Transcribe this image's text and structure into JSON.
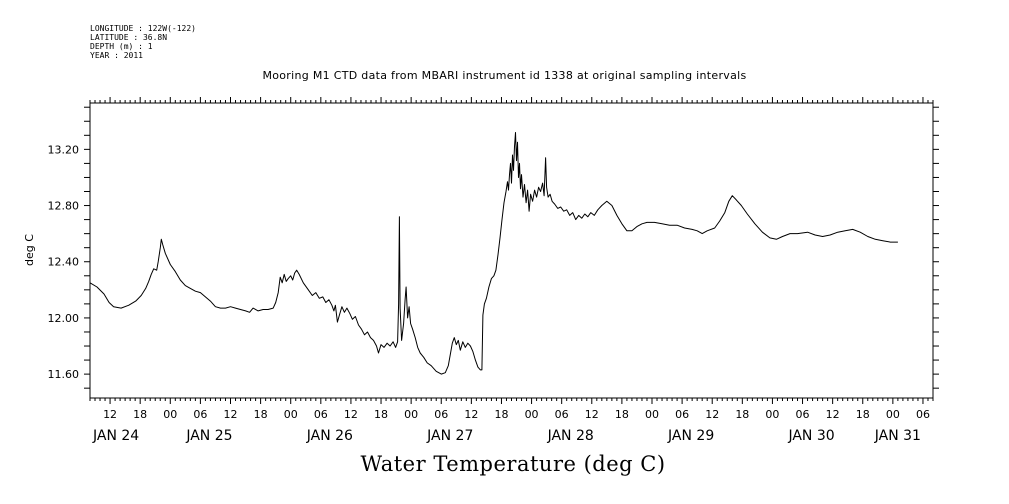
{
  "meta": {
    "longitude": "LONGITUDE : 122W(-122)",
    "latitude": "LATITUDE : 36.8N",
    "depth": "DEPTH (m) : 1",
    "year": "YEAR : 2011"
  },
  "chart_data": {
    "type": "line",
    "title": "Mooring M1 CTD data from MBARI instrument id 1338 at original sampling intervals",
    "bottom_title": "Water Temperature (deg C)",
    "ylabel": "deg C",
    "ylim": [
      11.43,
      13.53
    ],
    "xlim": [
      -16,
      152
    ],
    "x_unit": "hours since 2011-01-24 00:00",
    "y_ticks": [
      11.6,
      12.0,
      12.4,
      12.8,
      13.2
    ],
    "y_tick_labels": [
      "11.60",
      "12.00",
      "12.40",
      "12.80",
      "13.20"
    ],
    "hour_tick_labels": [
      {
        "x": -12,
        "label": "12"
      },
      {
        "x": -6,
        "label": "18"
      },
      {
        "x": 0,
        "label": "00"
      },
      {
        "x": 6,
        "label": "06"
      },
      {
        "x": 12,
        "label": "12"
      },
      {
        "x": 18,
        "label": "18"
      },
      {
        "x": 24,
        "label": "00"
      },
      {
        "x": 30,
        "label": "06"
      },
      {
        "x": 36,
        "label": "12"
      },
      {
        "x": 42,
        "label": "18"
      },
      {
        "x": 48,
        "label": "00"
      },
      {
        "x": 54,
        "label": "06"
      },
      {
        "x": 60,
        "label": "12"
      },
      {
        "x": 66,
        "label": "18"
      },
      {
        "x": 72,
        "label": "00"
      },
      {
        "x": 78,
        "label": "06"
      },
      {
        "x": 84,
        "label": "12"
      },
      {
        "x": 90,
        "label": "18"
      },
      {
        "x": 96,
        "label": "00"
      },
      {
        "x": 102,
        "label": "06"
      },
      {
        "x": 108,
        "label": "12"
      },
      {
        "x": 114,
        "label": "18"
      },
      {
        "x": 120,
        "label": "00"
      },
      {
        "x": 126,
        "label": "06"
      },
      {
        "x": 132,
        "label": "12"
      },
      {
        "x": 138,
        "label": "18"
      },
      {
        "x": 144,
        "label": "00"
      },
      {
        "x": 150,
        "label": "06"
      }
    ],
    "day_labels": [
      {
        "x": -10.8,
        "label": "JAN 24"
      },
      {
        "x": 7.8,
        "label": "JAN 25"
      },
      {
        "x": 31.8,
        "label": "JAN 26"
      },
      {
        "x": 55.8,
        "label": "JAN 27"
      },
      {
        "x": 79.8,
        "label": "JAN 28"
      },
      {
        "x": 103.8,
        "label": "JAN 29"
      },
      {
        "x": 127.8,
        "label": "JAN 30"
      },
      {
        "x": 145,
        "label": "JAN 31"
      }
    ],
    "series": [
      {
        "color": "#000000",
        "points": [
          [
            -16.0,
            12.25
          ],
          [
            -14.6,
            12.22
          ],
          [
            -13.2,
            12.17
          ],
          [
            -12.2,
            12.11
          ],
          [
            -11.3,
            12.08
          ],
          [
            -9.8,
            12.07
          ],
          [
            -8.3,
            12.09
          ],
          [
            -6.9,
            12.12
          ],
          [
            -5.8,
            12.16
          ],
          [
            -4.9,
            12.21
          ],
          [
            -4.3,
            12.26
          ],
          [
            -3.8,
            12.31
          ],
          [
            -3.3,
            12.35
          ],
          [
            -2.7,
            12.34
          ],
          [
            -2.4,
            12.4
          ],
          [
            -2.0,
            12.5
          ],
          [
            -1.8,
            12.56
          ],
          [
            -1.5,
            12.52
          ],
          [
            -1.0,
            12.46
          ],
          [
            0.0,
            12.38
          ],
          [
            1.0,
            12.33
          ],
          [
            2.0,
            12.27
          ],
          [
            3.0,
            12.23
          ],
          [
            4.0,
            12.21
          ],
          [
            5.0,
            12.19
          ],
          [
            6.0,
            12.18
          ],
          [
            7.0,
            12.15
          ],
          [
            8.0,
            12.12
          ],
          [
            9.0,
            12.08
          ],
          [
            10.0,
            12.07
          ],
          [
            11.0,
            12.07
          ],
          [
            12.0,
            12.08
          ],
          [
            13.0,
            12.07
          ],
          [
            14.0,
            12.06
          ],
          [
            15.0,
            12.05
          ],
          [
            15.8,
            12.04
          ],
          [
            16.5,
            12.07
          ],
          [
            17.5,
            12.05
          ],
          [
            18.5,
            12.06
          ],
          [
            19.5,
            12.06
          ],
          [
            20.5,
            12.07
          ],
          [
            21.0,
            12.11
          ],
          [
            21.5,
            12.18
          ],
          [
            21.9,
            12.29
          ],
          [
            22.3,
            12.25
          ],
          [
            22.7,
            12.31
          ],
          [
            23.1,
            12.26
          ],
          [
            23.5,
            12.28
          ],
          [
            24.0,
            12.3
          ],
          [
            24.4,
            12.27
          ],
          [
            24.8,
            12.32
          ],
          [
            25.2,
            12.34
          ],
          [
            25.7,
            12.31
          ],
          [
            26.5,
            12.25
          ],
          [
            27.5,
            12.2
          ],
          [
            28.3,
            12.16
          ],
          [
            29.0,
            12.18
          ],
          [
            29.7,
            12.14
          ],
          [
            30.4,
            12.15
          ],
          [
            31.0,
            12.11
          ],
          [
            31.6,
            12.13
          ],
          [
            32.2,
            12.09
          ],
          [
            32.6,
            12.05
          ],
          [
            32.9,
            12.09
          ],
          [
            33.3,
            11.97
          ],
          [
            33.7,
            12.02
          ],
          [
            34.2,
            12.08
          ],
          [
            34.7,
            12.04
          ],
          [
            35.2,
            12.07
          ],
          [
            35.8,
            12.03
          ],
          [
            36.3,
            11.99
          ],
          [
            36.9,
            12.01
          ],
          [
            37.5,
            11.95
          ],
          [
            38.1,
            11.92
          ],
          [
            38.7,
            11.88
          ],
          [
            39.3,
            11.9
          ],
          [
            39.9,
            11.86
          ],
          [
            40.5,
            11.84
          ],
          [
            41.1,
            11.8
          ],
          [
            41.5,
            11.75
          ],
          [
            42.0,
            11.81
          ],
          [
            42.6,
            11.79
          ],
          [
            43.2,
            11.82
          ],
          [
            43.8,
            11.8
          ],
          [
            44.4,
            11.83
          ],
          [
            44.9,
            11.79
          ],
          [
            45.3,
            11.83
          ],
          [
            45.5,
            12.1
          ],
          [
            45.65,
            12.72
          ],
          [
            45.8,
            12.07
          ],
          [
            46.1,
            11.84
          ],
          [
            46.5,
            11.96
          ],
          [
            46.8,
            12.13
          ],
          [
            47.0,
            12.22
          ],
          [
            47.3,
            12.0
          ],
          [
            47.6,
            12.08
          ],
          [
            47.9,
            11.96
          ],
          [
            48.3,
            11.92
          ],
          [
            48.8,
            11.86
          ],
          [
            49.3,
            11.79
          ],
          [
            49.8,
            11.75
          ],
          [
            50.5,
            11.72
          ],
          [
            51.2,
            11.68
          ],
          [
            52.0,
            11.66
          ],
          [
            53.0,
            11.62
          ],
          [
            54.0,
            11.6
          ],
          [
            54.8,
            11.61
          ],
          [
            55.4,
            11.66
          ],
          [
            55.8,
            11.74
          ],
          [
            56.2,
            11.82
          ],
          [
            56.6,
            11.86
          ],
          [
            57.0,
            11.81
          ],
          [
            57.4,
            11.84
          ],
          [
            57.8,
            11.77
          ],
          [
            58.3,
            11.83
          ],
          [
            58.8,
            11.79
          ],
          [
            59.3,
            11.82
          ],
          [
            59.8,
            11.8
          ],
          [
            60.3,
            11.76
          ],
          [
            60.8,
            11.7
          ],
          [
            61.3,
            11.65
          ],
          [
            61.8,
            11.63
          ],
          [
            62.1,
            11.63
          ],
          [
            62.3,
            12.02
          ],
          [
            62.6,
            12.1
          ],
          [
            63.0,
            12.14
          ],
          [
            63.5,
            12.22
          ],
          [
            64.0,
            12.28
          ],
          [
            64.5,
            12.3
          ],
          [
            64.9,
            12.34
          ],
          [
            65.3,
            12.45
          ],
          [
            65.7,
            12.57
          ],
          [
            66.1,
            12.7
          ],
          [
            66.5,
            12.82
          ],
          [
            66.9,
            12.9
          ],
          [
            67.2,
            12.97
          ],
          [
            67.4,
            12.91
          ],
          [
            67.6,
            13.02
          ],
          [
            67.8,
            13.1
          ],
          [
            68.0,
            12.96
          ],
          [
            68.2,
            13.16
          ],
          [
            68.4,
            13.05
          ],
          [
            68.6,
            13.22
          ],
          [
            68.8,
            13.32
          ],
          [
            69.0,
            13.12
          ],
          [
            69.2,
            13.25
          ],
          [
            69.4,
            13.0
          ],
          [
            69.6,
            13.1
          ],
          [
            69.8,
            12.92
          ],
          [
            70.0,
            13.02
          ],
          [
            70.3,
            12.86
          ],
          [
            70.6,
            12.95
          ],
          [
            70.9,
            12.82
          ],
          [
            71.2,
            12.91
          ],
          [
            71.5,
            12.76
          ],
          [
            71.8,
            12.88
          ],
          [
            72.2,
            12.83
          ],
          [
            72.6,
            12.91
          ],
          [
            73.0,
            12.86
          ],
          [
            73.4,
            12.93
          ],
          [
            73.8,
            12.9
          ],
          [
            74.2,
            12.96
          ],
          [
            74.5,
            12.87
          ],
          [
            74.8,
            13.14
          ],
          [
            75.0,
            12.93
          ],
          [
            75.3,
            12.86
          ],
          [
            75.7,
            12.88
          ],
          [
            76.1,
            12.83
          ],
          [
            76.6,
            12.81
          ],
          [
            77.2,
            12.78
          ],
          [
            77.8,
            12.79
          ],
          [
            78.4,
            12.76
          ],
          [
            79.0,
            12.77
          ],
          [
            79.6,
            12.73
          ],
          [
            80.2,
            12.75
          ],
          [
            80.8,
            12.7
          ],
          [
            81.4,
            12.73
          ],
          [
            82.0,
            12.71
          ],
          [
            82.6,
            12.74
          ],
          [
            83.2,
            12.72
          ],
          [
            83.8,
            12.75
          ],
          [
            84.5,
            12.73
          ],
          [
            85.2,
            12.77
          ],
          [
            86.0,
            12.8
          ],
          [
            87.0,
            12.83
          ],
          [
            88.0,
            12.8
          ],
          [
            89.0,
            12.73
          ],
          [
            90.0,
            12.67
          ],
          [
            91.0,
            12.62
          ],
          [
            92.0,
            12.62
          ],
          [
            93.0,
            12.65
          ],
          [
            94.0,
            12.67
          ],
          [
            95.0,
            12.68
          ],
          [
            96.5,
            12.68
          ],
          [
            98.0,
            12.67
          ],
          [
            99.5,
            12.66
          ],
          [
            101.0,
            12.66
          ],
          [
            102.5,
            12.64
          ],
          [
            104.0,
            12.63
          ],
          [
            105.0,
            12.62
          ],
          [
            106.0,
            12.6
          ],
          [
            107.0,
            12.62
          ],
          [
            108.5,
            12.64
          ],
          [
            109.5,
            12.69
          ],
          [
            110.5,
            12.75
          ],
          [
            111.3,
            12.83
          ],
          [
            112.0,
            12.87
          ],
          [
            112.8,
            12.84
          ],
          [
            113.8,
            12.8
          ],
          [
            115.0,
            12.74
          ],
          [
            116.5,
            12.67
          ],
          [
            118.0,
            12.61
          ],
          [
            119.5,
            12.57
          ],
          [
            120.8,
            12.56
          ],
          [
            122.0,
            12.58
          ],
          [
            123.5,
            12.6
          ],
          [
            125.0,
            12.6
          ],
          [
            127.0,
            12.61
          ],
          [
            128.5,
            12.59
          ],
          [
            130.0,
            12.58
          ],
          [
            131.5,
            12.59
          ],
          [
            133.0,
            12.61
          ],
          [
            134.5,
            12.62
          ],
          [
            136.0,
            12.63
          ],
          [
            137.5,
            12.61
          ],
          [
            139.0,
            12.58
          ],
          [
            140.5,
            12.56
          ],
          [
            142.0,
            12.55
          ],
          [
            143.5,
            12.54
          ],
          [
            145.0,
            12.54
          ]
        ]
      }
    ]
  }
}
